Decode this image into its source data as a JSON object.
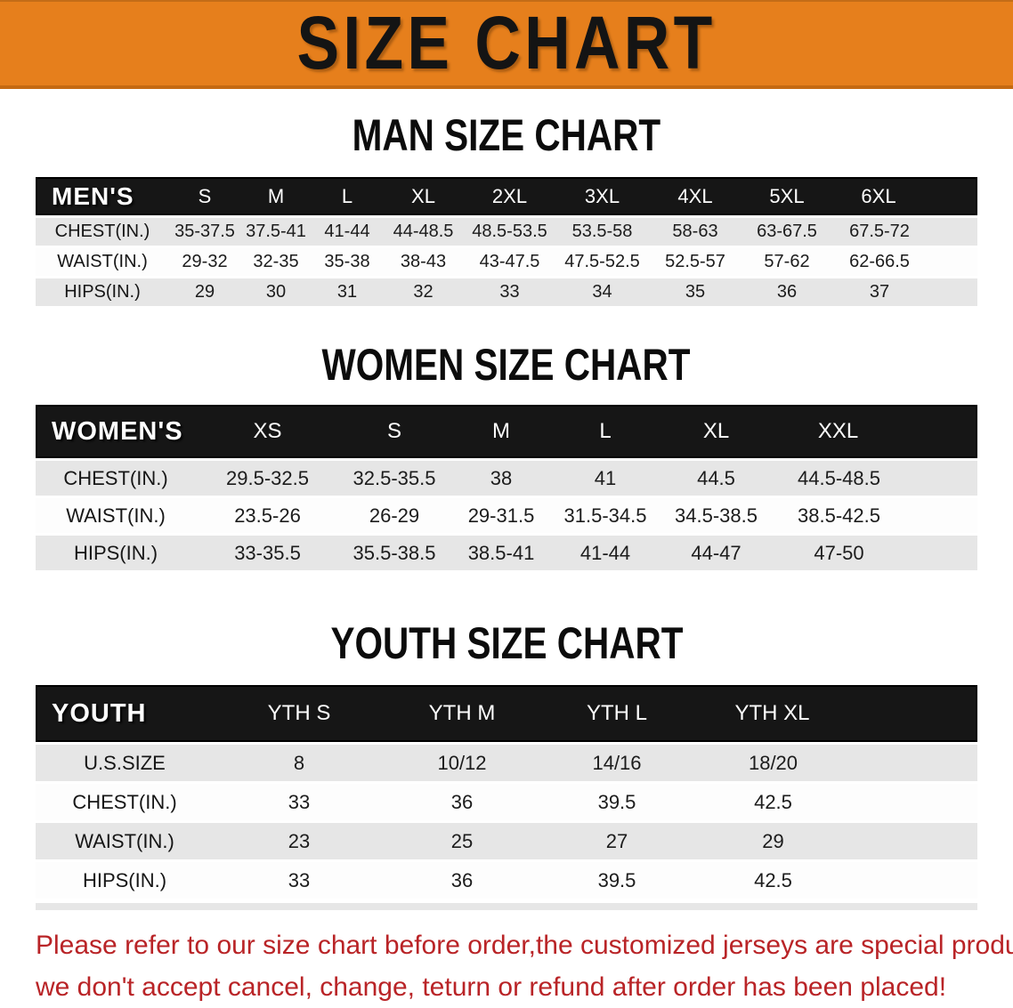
{
  "banner": {
    "title": "SIZE CHART"
  },
  "colors": {
    "banner_bg": "#e67f1c",
    "banner_edge": "#c56a12",
    "banner_text": "#141414",
    "table_header_bg": "#161616",
    "table_header_text": "#ffffff",
    "row_gray": "#e6e6e6",
    "row_white": "#fdfdfd",
    "notice_red": "#b92427"
  },
  "tables": {
    "men": {
      "heading": "MAN SIZE CHART",
      "header": [
        "MEN'S",
        "S",
        "M",
        "L",
        "XL",
        "2XL",
        "3XL",
        "4XL",
        "5XL",
        "6XL"
      ],
      "rows": [
        {
          "label": "CHEST(IN.)",
          "values": [
            "35-37.5",
            "37.5-41",
            "41-44",
            "44-48.5",
            "48.5-53.5",
            "53.5-58",
            "58-63",
            "63-67.5",
            "67.5-72"
          ]
        },
        {
          "label": "WAIST(IN.)",
          "values": [
            "29-32",
            "32-35",
            "35-38",
            "38-43",
            "43-47.5",
            "47.5-52.5",
            "52.5-57",
            "57-62",
            "62-66.5"
          ]
        },
        {
          "label": "HIPS(IN.)",
          "values": [
            "29",
            "30",
            "31",
            "32",
            "33",
            "34",
            "35",
            "36",
            "37"
          ]
        }
      ]
    },
    "women": {
      "heading": "WOMEN SIZE CHART",
      "header": [
        "WOMEN'S",
        "XS",
        "S",
        "M",
        "L",
        "XL",
        "XXL"
      ],
      "rows": [
        {
          "label": "CHEST(IN.)",
          "values": [
            "29.5-32.5",
            "32.5-35.5",
            "38",
            "41",
            "44.5",
            "44.5-48.5"
          ]
        },
        {
          "label": "WAIST(IN.)",
          "values": [
            "23.5-26",
            "26-29",
            "29-31.5",
            "31.5-34.5",
            "34.5-38.5",
            "38.5-42.5"
          ]
        },
        {
          "label": "HIPS(IN.)",
          "values": [
            "33-35.5",
            "35.5-38.5",
            "38.5-41",
            "41-44",
            "44-47",
            "47-50"
          ]
        }
      ]
    },
    "youth": {
      "heading": "YOUTH SIZE CHART",
      "header": [
        "YOUTH",
        "YTH S",
        "YTH M",
        "YTH L",
        "YTH XL"
      ],
      "rows": [
        {
          "label": "U.S.SIZE",
          "values": [
            "8",
            "10/12",
            "14/16",
            "18/20"
          ]
        },
        {
          "label": "CHEST(IN.)",
          "values": [
            "33",
            "36",
            "39.5",
            "42.5"
          ]
        },
        {
          "label": "WAIST(IN.)",
          "values": [
            "23",
            "25",
            "27",
            "29"
          ]
        },
        {
          "label": "HIPS(IN.)",
          "values": [
            "33",
            "36",
            "39.5",
            "42.5"
          ]
        }
      ]
    }
  },
  "notice": {
    "line1": "Please refer to our size chart before order,the customized jerseys are special products,",
    "line2": "we don't accept cancel, change, teturn or refund after order has been placed!"
  }
}
